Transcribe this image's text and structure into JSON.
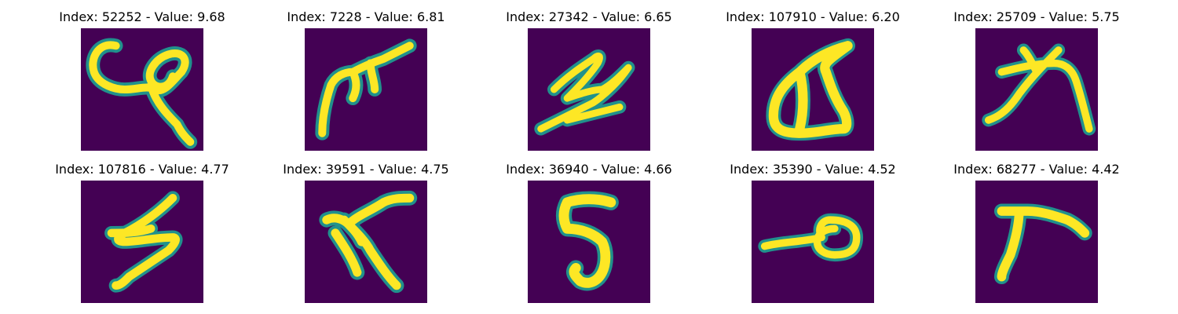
{
  "colors": {
    "background": "#440154",
    "stroke_core": "#fde725",
    "stroke_mid": "#35b779",
    "stroke_edge": "#21918c"
  },
  "panels": [
    {
      "title": "Index: 52252 - Value: 9.68"
    },
    {
      "title": "Index: 7228 - Value: 6.81"
    },
    {
      "title": "Index: 27342 - Value: 6.65"
    },
    {
      "title": "Index: 107910 - Value: 6.20"
    },
    {
      "title": "Index: 25709 - Value: 5.75"
    },
    {
      "title": "Index: 107816 - Value: 4.77"
    },
    {
      "title": "Index: 39591 - Value: 4.75"
    },
    {
      "title": "Index: 36940 - Value: 4.66"
    },
    {
      "title": "Index: 35390 - Value: 4.52"
    },
    {
      "title": "Index: 68277 - Value: 4.42"
    }
  ]
}
